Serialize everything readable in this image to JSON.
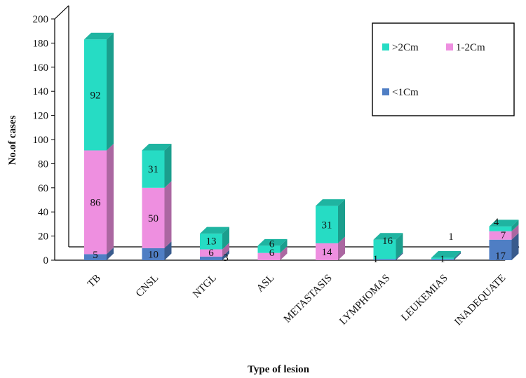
{
  "chart_data": {
    "type": "bar",
    "stacked": true,
    "style": "3d",
    "categories": [
      "TB",
      "CNSL",
      "NTGL",
      "ASL",
      "METASTASIS",
      "LYMPHOMAS",
      "LEUKEMIAS",
      "INADEQUATE"
    ],
    "series": [
      {
        "name": "<1Cm",
        "values": [
          5,
          10,
          3,
          0,
          0,
          1,
          1,
          17
        ],
        "labels": [
          "5",
          "10",
          "3",
          "",
          "",
          "1",
          "1",
          "17"
        ],
        "color": "#4f7ec4"
      },
      {
        "name": "1-2Cm",
        "values": [
          86,
          50,
          6,
          6,
          14,
          0,
          0,
          7
        ],
        "labels": [
          "86",
          "50",
          "6",
          "6",
          "14",
          "",
          "",
          "7"
        ],
        "color": "#ee8fe0"
      },
      {
        "name": ">2Cm",
        "values": [
          92,
          31,
          13,
          6,
          31,
          16,
          1,
          4
        ],
        "labels": [
          "92",
          "31",
          "13",
          "6",
          "31",
          "16",
          "1",
          "4"
        ],
        "color": "#26dcc4"
      }
    ],
    "title": "",
    "xlabel": "Type of  lesion",
    "ylabel": "No.of cases",
    "ylim": [
      0,
      200
    ],
    "yticks": [
      0,
      20,
      40,
      60,
      80,
      100,
      120,
      140,
      160,
      180,
      200
    ],
    "legend": {
      "placement": "top-right",
      "entries": [
        ">2Cm",
        "1-2Cm",
        "<1Cm"
      ]
    }
  }
}
